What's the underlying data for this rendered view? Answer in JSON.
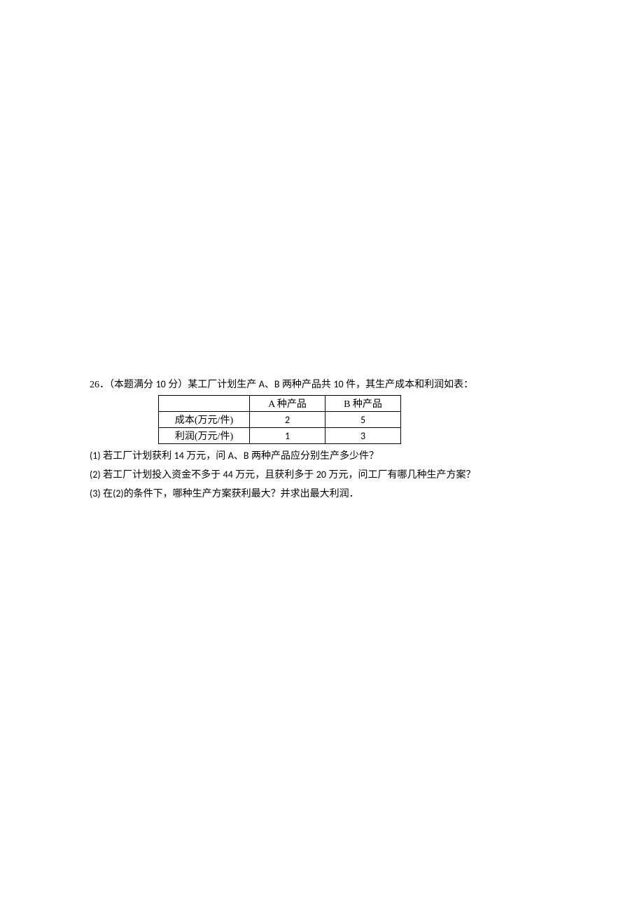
{
  "question": {
    "number": "26",
    "points_prefix": "．（本题满分 ",
    "points_value": "10",
    "points_suffix": " 分）某工厂计划生产 ",
    "prod_a": "A",
    "mid1": "、",
    "prod_b": "B",
    "mid2": " 两种产品共 ",
    "total": "10",
    "suffix": " 件，其生产成本和利润如表："
  },
  "table": {
    "header_empty": "",
    "header_a": "A 种产品",
    "header_b": "B 种产品",
    "row1_label": "成本(万元/件)",
    "row1_a": "2",
    "row1_b": "5",
    "row2_label": "利润(万元/件)",
    "row2_a": "1",
    "row2_b": "3"
  },
  "sub_questions": {
    "q1_num": "(1)",
    "q1_part1": "  若工厂计划获利 ",
    "q1_val": "14",
    "q1_part2": " 万元，问 ",
    "q1_a": "A",
    "q1_mid": "、",
    "q1_b": "B",
    "q1_part3": " 两种产品应分别生产多少件？",
    "q2_num": "(2)",
    "q2_part1": "  若工厂计划投入资金不多于 ",
    "q2_val1": "44",
    "q2_part2": " 万元，且获利多于 ",
    "q2_val2": "20",
    "q2_part3": " 万元，问工厂有哪几种生产方案？",
    "q3_num": "(3)",
    "q3_part1": "  在",
    "q3_ref": "(2)",
    "q3_part2": "的条件下，哪种生产方案获利最大？并求出最大利润．"
  }
}
